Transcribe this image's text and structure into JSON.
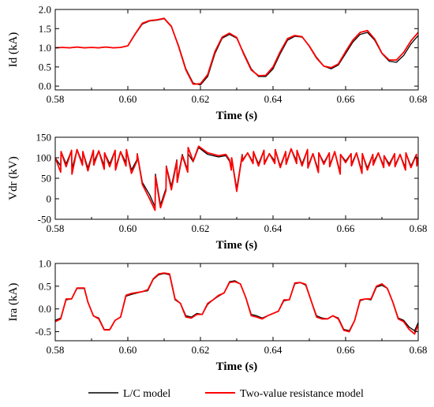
{
  "chart_data": [
    {
      "type": "line",
      "ylabel": "Id (kA)",
      "xlabel": "Time (s)",
      "xlim": [
        0.58,
        0.68
      ],
      "ylim": [
        -0.1,
        2.0
      ],
      "xticks": [
        "0.58",
        "0.60",
        "0.62",
        "0.64",
        "0.66",
        "0.68"
      ],
      "yticks": [
        "0.0",
        "0.5",
        "1.0",
        "1.5",
        "2.0"
      ],
      "ytick_values": [
        0,
        0.5,
        1.0,
        1.5,
        2.0
      ],
      "grid": false,
      "series": [
        {
          "name": "L/C model",
          "color": "#000000",
          "x": [
            0.58,
            0.582,
            0.584,
            0.586,
            0.588,
            0.59,
            0.592,
            0.594,
            0.596,
            0.598,
            0.6,
            0.602,
            0.604,
            0.606,
            0.608,
            0.61,
            0.612,
            0.614,
            0.616,
            0.618,
            0.62,
            0.622,
            0.624,
            0.626,
            0.628,
            0.63,
            0.632,
            0.634,
            0.636,
            0.638,
            0.64,
            0.642,
            0.644,
            0.646,
            0.648,
            0.65,
            0.652,
            0.654,
            0.656,
            0.658,
            0.66,
            0.662,
            0.664,
            0.666,
            0.668,
            0.67,
            0.672,
            0.674,
            0.676,
            0.678,
            0.68
          ],
          "y": [
            1.0,
            1.01,
            1.0,
            1.02,
            1.0,
            1.01,
            1.0,
            1.02,
            1.0,
            1.01,
            1.05,
            1.35,
            1.62,
            1.7,
            1.72,
            1.76,
            1.55,
            1.05,
            0.45,
            0.08,
            0.03,
            0.25,
            0.85,
            1.25,
            1.35,
            1.25,
            0.85,
            0.45,
            0.25,
            0.25,
            0.45,
            0.85,
            1.2,
            1.3,
            1.28,
            1.05,
            0.75,
            0.52,
            0.45,
            0.55,
            0.85,
            1.15,
            1.35,
            1.4,
            1.2,
            0.85,
            0.65,
            0.62,
            0.8,
            1.1,
            1.32
          ]
        },
        {
          "name": "Two-value resistance model",
          "color": "#ff0000",
          "x": [
            0.58,
            0.582,
            0.584,
            0.586,
            0.588,
            0.59,
            0.592,
            0.594,
            0.596,
            0.598,
            0.6,
            0.602,
            0.604,
            0.606,
            0.608,
            0.61,
            0.612,
            0.614,
            0.616,
            0.618,
            0.62,
            0.622,
            0.624,
            0.626,
            0.628,
            0.63,
            0.632,
            0.634,
            0.636,
            0.638,
            0.64,
            0.642,
            0.644,
            0.646,
            0.648,
            0.65,
            0.652,
            0.654,
            0.656,
            0.658,
            0.66,
            0.662,
            0.664,
            0.666,
            0.668,
            0.67,
            0.672,
            0.674,
            0.676,
            0.678,
            0.68
          ],
          "y": [
            1.0,
            1.01,
            1.0,
            1.02,
            1.0,
            1.01,
            1.0,
            1.02,
            1.0,
            1.01,
            1.05,
            1.36,
            1.64,
            1.71,
            1.73,
            1.77,
            1.56,
            1.03,
            0.42,
            0.05,
            0.06,
            0.3,
            0.9,
            1.28,
            1.38,
            1.27,
            0.82,
            0.42,
            0.27,
            0.28,
            0.5,
            0.9,
            1.24,
            1.32,
            1.29,
            1.04,
            0.73,
            0.52,
            0.48,
            0.58,
            0.9,
            1.2,
            1.4,
            1.45,
            1.23,
            0.86,
            0.68,
            0.68,
            0.88,
            1.18,
            1.4
          ]
        }
      ]
    },
    {
      "type": "line",
      "ylabel": "Vdr (kV)",
      "xlabel": "Time (s)",
      "xlim": [
        0.58,
        0.68
      ],
      "ylim": [
        -50,
        150
      ],
      "xticks": [
        "0.58",
        "0.60",
        "0.62",
        "0.64",
        "0.66",
        "0.68"
      ],
      "yticks": [
        "-50",
        "0",
        "50",
        "100",
        "150"
      ],
      "ytick_values": [
        -50,
        0,
        50,
        100,
        150
      ],
      "grid": false,
      "series": [
        {
          "name": "L/C model",
          "color": "#000000",
          "x": [
            0.58,
            0.5815,
            0.5816,
            0.583,
            0.5845,
            0.5846,
            0.586,
            0.5875,
            0.5876,
            0.589,
            0.5905,
            0.5906,
            0.592,
            0.5935,
            0.5936,
            0.595,
            0.5965,
            0.5966,
            0.598,
            0.5995,
            0.5996,
            0.601,
            0.6025,
            0.6026,
            0.604,
            0.606,
            0.6075,
            0.6076,
            0.609,
            0.6105,
            0.6106,
            0.612,
            0.6135,
            0.6136,
            0.615,
            0.6165,
            0.6166,
            0.618,
            0.6195,
            0.622,
            0.625,
            0.627,
            0.628,
            0.6285,
            0.6286,
            0.63,
            0.6315,
            0.6316,
            0.633,
            0.6345,
            0.6346,
            0.636,
            0.6375,
            0.6376,
            0.639,
            0.6405,
            0.6406,
            0.642,
            0.6435,
            0.6436,
            0.645,
            0.6465,
            0.6466,
            0.648,
            0.6495,
            0.6496,
            0.651,
            0.6525,
            0.6526,
            0.654,
            0.6555,
            0.6556,
            0.657,
            0.6585,
            0.6586,
            0.66,
            0.6615,
            0.6616,
            0.663,
            0.6645,
            0.6646,
            0.666,
            0.6675,
            0.6676,
            0.669,
            0.6705,
            0.6706,
            0.672,
            0.6735,
            0.6736,
            0.675,
            0.6765,
            0.6766,
            0.678,
            0.6795,
            0.6796,
            0.68
          ],
          "y": [
            100,
            80,
            115,
            85,
            118,
            72,
            120,
            88,
            115,
            75,
            118,
            90,
            117,
            80,
            112,
            85,
            118,
            76,
            115,
            88,
            120,
            70,
            95,
            110,
            40,
            10,
            -20,
            60,
            -15,
            25,
            80,
            30,
            95,
            45,
            108,
            70,
            110,
            90,
            125,
            108,
            102,
            105,
            92,
            78,
            100,
            25,
            108,
            95,
            112,
            90,
            115,
            85,
            118,
            88,
            110,
            92,
            120,
            80,
            115,
            88,
            122,
            92,
            118,
            85,
            120,
            80,
            110,
            70,
            112,
            88,
            112,
            82,
            115,
            65,
            108,
            92,
            110,
            85,
            112,
            68,
            110,
            75,
            108,
            88,
            112,
            80,
            105,
            85,
            110,
            82,
            108,
            75,
            112,
            80,
            108,
            85,
            100
          ]
        },
        {
          "name": "Two-value resistance model",
          "color": "#ff0000",
          "x": [
            0.58,
            0.5815,
            0.5816,
            0.583,
            0.5845,
            0.5846,
            0.586,
            0.5875,
            0.5876,
            0.589,
            0.5905,
            0.5906,
            0.592,
            0.5935,
            0.5936,
            0.595,
            0.5965,
            0.5966,
            0.598,
            0.5995,
            0.5996,
            0.601,
            0.6025,
            0.6026,
            0.604,
            0.606,
            0.6075,
            0.6076,
            0.609,
            0.6105,
            0.6106,
            0.612,
            0.6135,
            0.6136,
            0.615,
            0.6165,
            0.6166,
            0.618,
            0.6195,
            0.622,
            0.625,
            0.627,
            0.628,
            0.6285,
            0.6286,
            0.63,
            0.6315,
            0.6316,
            0.633,
            0.6345,
            0.6346,
            0.636,
            0.6375,
            0.6376,
            0.639,
            0.6405,
            0.6406,
            0.642,
            0.6435,
            0.6436,
            0.645,
            0.6465,
            0.6466,
            0.648,
            0.6495,
            0.6496,
            0.651,
            0.6525,
            0.6526,
            0.654,
            0.6555,
            0.6556,
            0.657,
            0.6585,
            0.6586,
            0.66,
            0.6615,
            0.6616,
            0.663,
            0.6645,
            0.6646,
            0.666,
            0.6675,
            0.6676,
            0.669,
            0.6705,
            0.6706,
            0.672,
            0.6735,
            0.6736,
            0.675,
            0.6765,
            0.6766,
            0.678,
            0.6795,
            0.6796,
            0.68
          ],
          "y": [
            100,
            65,
            115,
            78,
            118,
            60,
            120,
            82,
            115,
            68,
            118,
            82,
            117,
            72,
            112,
            78,
            118,
            70,
            115,
            80,
            120,
            62,
            92,
            108,
            35,
            0,
            -28,
            55,
            -22,
            20,
            78,
            22,
            92,
            40,
            105,
            65,
            125,
            92,
            128,
            112,
            105,
            108,
            95,
            70,
            100,
            18,
            106,
            92,
            112,
            86,
            115,
            80,
            118,
            84,
            110,
            86,
            120,
            76,
            115,
            84,
            122,
            86,
            118,
            80,
            120,
            75,
            110,
            64,
            112,
            84,
            112,
            78,
            115,
            60,
            108,
            88,
            110,
            80,
            112,
            62,
            110,
            70,
            108,
            82,
            112,
            76,
            105,
            80,
            110,
            78,
            108,
            70,
            112,
            76,
            108,
            80,
            100
          ]
        }
      ]
    },
    {
      "type": "line",
      "ylabel": "Ira (kA)",
      "xlabel": "Time (s)",
      "xlim": [
        0.58,
        0.68
      ],
      "ylim": [
        -0.7,
        1.0
      ],
      "xticks": [
        "0.58",
        "0.60",
        "0.62",
        "0.64",
        "0.66",
        "0.68"
      ],
      "yticks": [
        "-0.5",
        "0.0",
        "0.5",
        "1.0"
      ],
      "ytick_values": [
        -0.5,
        0.0,
        0.5,
        1.0
      ],
      "grid": false,
      "series": [
        {
          "name": "L/C model",
          "color": "#000000",
          "x": [
            0.58,
            0.5815,
            0.583,
            0.5845,
            0.586,
            0.588,
            0.589,
            0.5905,
            0.592,
            0.5935,
            0.595,
            0.5965,
            0.598,
            0.5995,
            0.601,
            0.6025,
            0.604,
            0.6055,
            0.607,
            0.6085,
            0.61,
            0.6115,
            0.613,
            0.6145,
            0.616,
            0.6175,
            0.619,
            0.6205,
            0.622,
            0.6235,
            0.625,
            0.6265,
            0.628,
            0.6295,
            0.631,
            0.6325,
            0.634,
            0.6355,
            0.637,
            0.6385,
            0.64,
            0.6415,
            0.643,
            0.6445,
            0.646,
            0.6475,
            0.649,
            0.6505,
            0.652,
            0.6535,
            0.655,
            0.6565,
            0.658,
            0.6595,
            0.661,
            0.6625,
            0.664,
            0.6655,
            0.667,
            0.6685,
            0.67,
            0.6715,
            0.673,
            0.6745,
            0.676,
            0.6775,
            0.679,
            0.68
          ],
          "y": [
            -0.25,
            -0.2,
            0.2,
            0.22,
            0.45,
            0.45,
            0.15,
            -0.15,
            -0.2,
            -0.45,
            -0.45,
            -0.25,
            -0.18,
            0.28,
            0.32,
            0.35,
            0.38,
            0.4,
            0.65,
            0.75,
            0.78,
            0.75,
            0.2,
            0.12,
            -0.15,
            -0.18,
            -0.1,
            -0.12,
            0.1,
            0.2,
            0.28,
            0.35,
            0.6,
            0.62,
            0.55,
            0.25,
            -0.12,
            -0.15,
            -0.2,
            -0.15,
            -0.1,
            -0.05,
            0.18,
            0.2,
            0.55,
            0.58,
            0.52,
            0.18,
            -0.15,
            -0.2,
            -0.22,
            -0.15,
            -0.2,
            -0.45,
            -0.48,
            -0.25,
            0.18,
            0.22,
            0.2,
            0.48,
            0.52,
            0.45,
            0.15,
            -0.2,
            -0.25,
            -0.4,
            -0.48,
            -0.3
          ]
        },
        {
          "name": "Two-value resistance model",
          "color": "#ff0000",
          "x": [
            0.58,
            0.5815,
            0.583,
            0.5845,
            0.586,
            0.588,
            0.589,
            0.5905,
            0.592,
            0.5935,
            0.595,
            0.5965,
            0.598,
            0.5995,
            0.601,
            0.6025,
            0.604,
            0.6055,
            0.607,
            0.6085,
            0.61,
            0.6115,
            0.613,
            0.6145,
            0.616,
            0.6175,
            0.619,
            0.6205,
            0.622,
            0.6235,
            0.625,
            0.6265,
            0.628,
            0.6295,
            0.631,
            0.6325,
            0.634,
            0.6355,
            0.637,
            0.6385,
            0.64,
            0.6415,
            0.643,
            0.6445,
            0.646,
            0.6475,
            0.649,
            0.6505,
            0.652,
            0.6535,
            0.655,
            0.6565,
            0.658,
            0.6595,
            0.661,
            0.6625,
            0.664,
            0.6655,
            0.667,
            0.6685,
            0.67,
            0.6715,
            0.673,
            0.6745,
            0.676,
            0.6775,
            0.679,
            0.68
          ],
          "y": [
            -0.28,
            -0.22,
            0.22,
            0.22,
            0.46,
            0.46,
            0.15,
            -0.15,
            -0.22,
            -0.46,
            -0.46,
            -0.25,
            -0.18,
            0.3,
            0.34,
            0.36,
            0.38,
            0.42,
            0.66,
            0.77,
            0.79,
            0.77,
            0.22,
            0.12,
            -0.18,
            -0.2,
            -0.12,
            -0.12,
            0.12,
            0.2,
            0.3,
            0.35,
            0.58,
            0.6,
            0.55,
            0.25,
            -0.15,
            -0.18,
            -0.22,
            -0.15,
            -0.1,
            -0.05,
            0.2,
            0.2,
            0.57,
            0.58,
            0.54,
            0.18,
            -0.18,
            -0.22,
            -0.22,
            -0.15,
            -0.22,
            -0.47,
            -0.5,
            -0.25,
            0.2,
            0.22,
            0.22,
            0.5,
            0.55,
            0.45,
            0.15,
            -0.22,
            -0.28,
            -0.45,
            -0.55,
            -0.35
          ]
        }
      ]
    }
  ],
  "legend": {
    "placement": "bottom-center",
    "items": [
      {
        "label": "L/C model",
        "color": "#000000"
      },
      {
        "label": "Two-value resistance model",
        "color": "#ff0000"
      }
    ]
  }
}
